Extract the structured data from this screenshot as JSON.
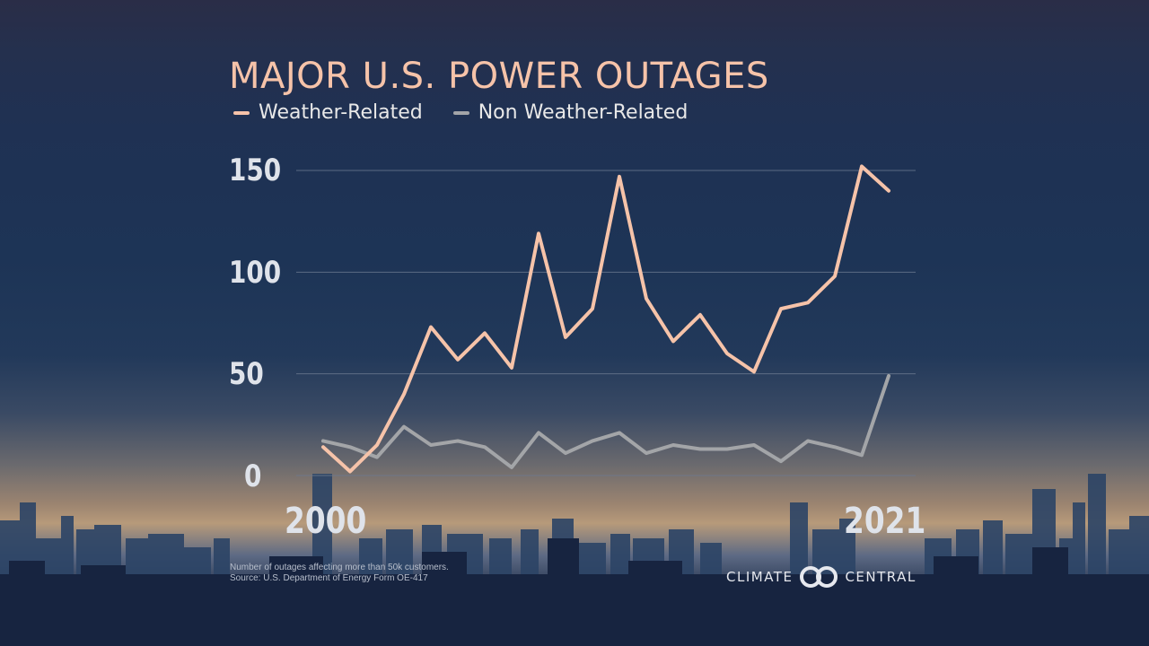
{
  "title": "MAJOR U.S. POWER OUTAGES",
  "chart_data": {
    "type": "line",
    "title": "MAJOR U.S. POWER OUTAGES",
    "x": [
      2000,
      2001,
      2002,
      2003,
      2004,
      2005,
      2006,
      2007,
      2008,
      2009,
      2010,
      2011,
      2012,
      2013,
      2014,
      2015,
      2016,
      2017,
      2018,
      2019,
      2020,
      2021
    ],
    "x_tick_labels": [
      "2000",
      "2021"
    ],
    "y_tick_labels": [
      "150",
      "100",
      "50",
      "0"
    ],
    "ylim": [
      0,
      160
    ],
    "grid": true,
    "legend_position": "top-left",
    "series": [
      {
        "name": "Weather-Related",
        "color": "#f6c3a9",
        "values": [
          14,
          2,
          15,
          40,
          73,
          57,
          70,
          53,
          119,
          68,
          82,
          147,
          87,
          66,
          79,
          60,
          51,
          82,
          85,
          98,
          152,
          140
        ]
      },
      {
        "name": "Non Weather-Related",
        "color": "#a3a5a8",
        "values": [
          17,
          14,
          9,
          24,
          15,
          17,
          14,
          4,
          21,
          11,
          17,
          21,
          11,
          15,
          13,
          13,
          15,
          7,
          17,
          14,
          10,
          49
        ]
      }
    ],
    "axis_text_color": "#dfe3ea",
    "grid_color": "#6b7a90"
  },
  "footnote": {
    "line1": "Number of outages affecting more than 50k customers.",
    "line2": "Source: U.S. Department of Energy Form OE-417"
  },
  "logo": {
    "left": "CLIMATE",
    "right": "CENTRAL"
  }
}
